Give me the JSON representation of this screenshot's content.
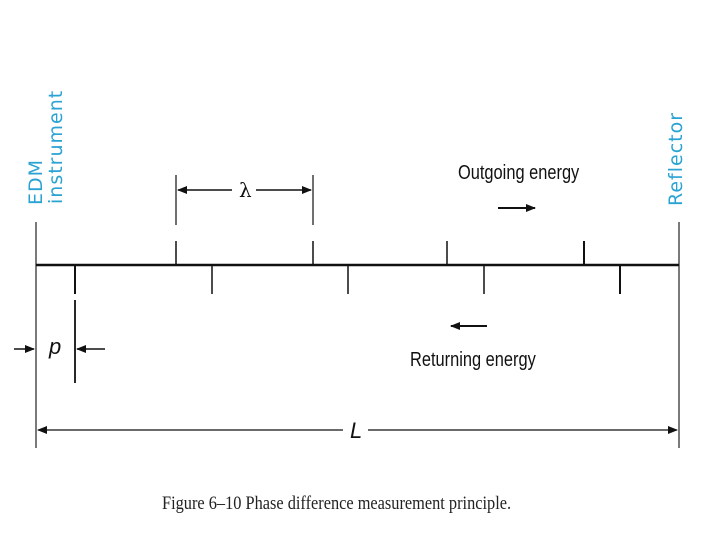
{
  "labels": {
    "edm": "EDM",
    "instrument": "instrument",
    "reflector": "Reflector",
    "outgoing": "Outgoing energy",
    "returning": "Returning energy",
    "lambda": "λ",
    "p": "p",
    "L": "L"
  },
  "caption": "Figure 6–10   Phase difference measurement principle.",
  "colors": {
    "label_blue": "#2aa3d3",
    "line": "#111111"
  }
}
